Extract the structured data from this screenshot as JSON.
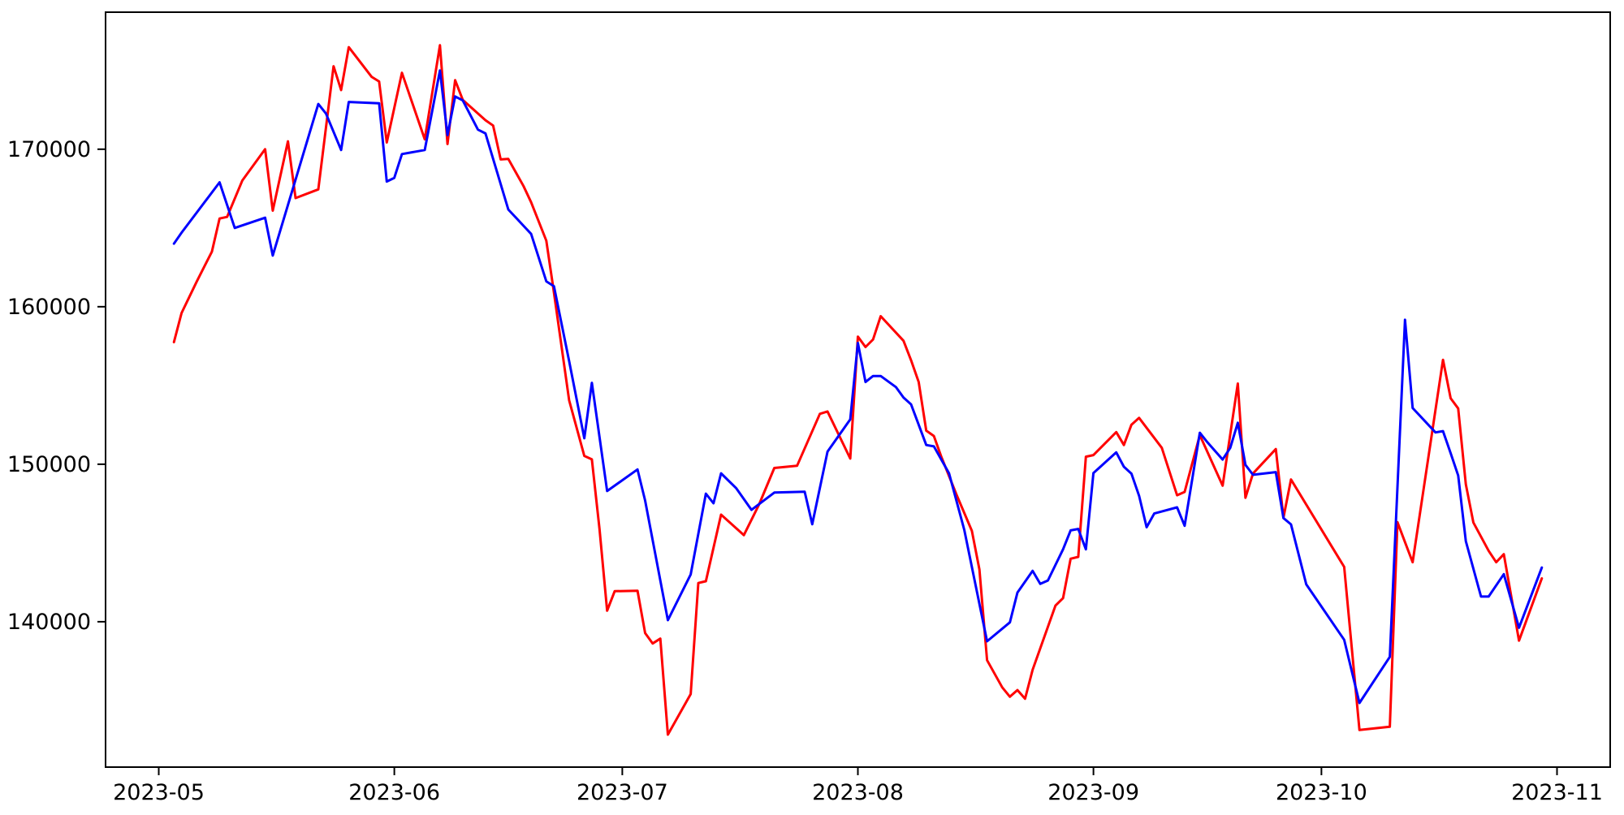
{
  "chart_data": {
    "type": "line",
    "title": "",
    "xlabel": "",
    "ylabel": "",
    "grid": false,
    "legend": null,
    "background_color": "#ffffff",
    "axis_color": "#000000",
    "x_axis": {
      "range": [
        "2023-04-24",
        "2023-11-08"
      ],
      "ticks": [
        {
          "label": "2023-05",
          "date": "2023-05-01"
        },
        {
          "label": "2023-06",
          "date": "2023-06-01"
        },
        {
          "label": "2023-07",
          "date": "2023-07-01"
        },
        {
          "label": "2023-08",
          "date": "2023-08-01"
        },
        {
          "label": "2023-09",
          "date": "2023-09-01"
        },
        {
          "label": "2023-10",
          "date": "2023-10-01"
        },
        {
          "label": "2023-11",
          "date": "2023-11-01"
        }
      ]
    },
    "y_axis": {
      "range": [
        130770,
        178700
      ],
      "ticks": [
        {
          "label": "140000",
          "value": 140000
        },
        {
          "label": "150000",
          "value": 150000
        },
        {
          "label": "160000",
          "value": 160000
        },
        {
          "label": "170000",
          "value": 170000
        }
      ]
    },
    "series": [
      {
        "name": "red-series",
        "color": "#ff0000",
        "points": [
          [
            "2023-05-03",
            157750
          ],
          [
            "2023-05-04",
            159600
          ],
          [
            "2023-05-06",
            161600
          ],
          [
            "2023-05-08",
            163500
          ],
          [
            "2023-05-09",
            165600
          ],
          [
            "2023-05-10",
            165700
          ],
          [
            "2023-05-12",
            168020
          ],
          [
            "2023-05-15",
            170000
          ],
          [
            "2023-05-16",
            166100
          ],
          [
            "2023-05-18",
            170500
          ],
          [
            "2023-05-19",
            166900
          ],
          [
            "2023-05-22",
            167450
          ],
          [
            "2023-05-24",
            175270
          ],
          [
            "2023-05-25",
            173760
          ],
          [
            "2023-05-26",
            176480
          ],
          [
            "2023-05-29",
            174600
          ],
          [
            "2023-05-30",
            174300
          ],
          [
            "2023-05-31",
            170430
          ],
          [
            "2023-06-02",
            174850
          ],
          [
            "2023-06-05",
            170630
          ],
          [
            "2023-06-07",
            176600
          ],
          [
            "2023-06-08",
            170330
          ],
          [
            "2023-06-09",
            174380
          ],
          [
            "2023-06-10",
            173130
          ],
          [
            "2023-06-13",
            171840
          ],
          [
            "2023-06-14",
            171500
          ],
          [
            "2023-06-15",
            169350
          ],
          [
            "2023-06-16",
            169380
          ],
          [
            "2023-06-18",
            167660
          ],
          [
            "2023-06-19",
            166630
          ],
          [
            "2023-06-21",
            164190
          ],
          [
            "2023-06-22",
            160900
          ],
          [
            "2023-06-24",
            154060
          ],
          [
            "2023-06-26",
            150530
          ],
          [
            "2023-06-27",
            150310
          ],
          [
            "2023-06-28",
            145890
          ],
          [
            "2023-06-29",
            140700
          ],
          [
            "2023-06-30",
            141940
          ],
          [
            "2023-07-03",
            141970
          ],
          [
            "2023-07-04",
            139280
          ],
          [
            "2023-07-05",
            138620
          ],
          [
            "2023-07-06",
            138930
          ],
          [
            "2023-07-07",
            132830
          ],
          [
            "2023-07-10",
            135410
          ],
          [
            "2023-07-11",
            142460
          ],
          [
            "2023-07-12",
            142570
          ],
          [
            "2023-07-14",
            146800
          ],
          [
            "2023-07-17",
            145500
          ],
          [
            "2023-07-19",
            147440
          ],
          [
            "2023-07-21",
            149760
          ],
          [
            "2023-07-24",
            149900
          ],
          [
            "2023-07-27",
            153200
          ],
          [
            "2023-07-28",
            153350
          ],
          [
            "2023-07-31",
            150360
          ],
          [
            "2023-08-01",
            158100
          ],
          [
            "2023-08-02",
            157440
          ],
          [
            "2023-08-03",
            157920
          ],
          [
            "2023-08-04",
            159400
          ],
          [
            "2023-08-07",
            157840
          ],
          [
            "2023-08-08",
            156600
          ],
          [
            "2023-08-09",
            155220
          ],
          [
            "2023-08-10",
            152130
          ],
          [
            "2023-08-11",
            151790
          ],
          [
            "2023-08-12",
            150450
          ],
          [
            "2023-08-14",
            148040
          ],
          [
            "2023-08-16",
            145770
          ],
          [
            "2023-08-17",
            143310
          ],
          [
            "2023-08-18",
            137560
          ],
          [
            "2023-08-20",
            135830
          ],
          [
            "2023-08-21",
            135240
          ],
          [
            "2023-08-22",
            135660
          ],
          [
            "2023-08-23",
            135110
          ],
          [
            "2023-08-24",
            136950
          ],
          [
            "2023-08-27",
            141020
          ],
          [
            "2023-08-28",
            141500
          ],
          [
            "2023-08-29",
            144000
          ],
          [
            "2023-08-30",
            144120
          ],
          [
            "2023-08-31",
            150480
          ],
          [
            "2023-09-01",
            150580
          ],
          [
            "2023-09-04",
            152040
          ],
          [
            "2023-09-05",
            151220
          ],
          [
            "2023-09-06",
            152510
          ],
          [
            "2023-09-07",
            152940
          ],
          [
            "2023-09-10",
            151040
          ],
          [
            "2023-09-12",
            148030
          ],
          [
            "2023-09-13",
            148240
          ],
          [
            "2023-09-15",
            151850
          ],
          [
            "2023-09-18",
            148640
          ],
          [
            "2023-09-20",
            155120
          ],
          [
            "2023-09-21",
            147870
          ],
          [
            "2023-09-22",
            149410
          ],
          [
            "2023-09-25",
            150960
          ],
          [
            "2023-09-26",
            146610
          ],
          [
            "2023-09-27",
            149030
          ],
          [
            "2023-10-04",
            143480
          ],
          [
            "2023-10-06",
            133130
          ],
          [
            "2023-10-10",
            133330
          ],
          [
            "2023-10-11",
            146320
          ],
          [
            "2023-10-13",
            143780
          ],
          [
            "2023-10-17",
            156630
          ],
          [
            "2023-10-18",
            154190
          ],
          [
            "2023-10-19",
            153540
          ],
          [
            "2023-10-20",
            148730
          ],
          [
            "2023-10-21",
            146300
          ],
          [
            "2023-10-23",
            144500
          ],
          [
            "2023-10-24",
            143780
          ],
          [
            "2023-10-25",
            144290
          ],
          [
            "2023-10-27",
            138800
          ],
          [
            "2023-10-30",
            142750
          ]
        ]
      },
      {
        "name": "blue-series",
        "color": "#0000ff",
        "points": [
          [
            "2023-05-03",
            164000
          ],
          [
            "2023-05-04",
            164700
          ],
          [
            "2023-05-09",
            167900
          ],
          [
            "2023-05-11",
            165000
          ],
          [
            "2023-05-15",
            165650
          ],
          [
            "2023-05-16",
            163250
          ],
          [
            "2023-05-22",
            172870
          ],
          [
            "2023-05-23",
            172270
          ],
          [
            "2023-05-25",
            169950
          ],
          [
            "2023-05-26",
            173000
          ],
          [
            "2023-05-30",
            172920
          ],
          [
            "2023-05-31",
            167950
          ],
          [
            "2023-06-01",
            168180
          ],
          [
            "2023-06-02",
            169690
          ],
          [
            "2023-06-05",
            169950
          ],
          [
            "2023-06-07",
            175000
          ],
          [
            "2023-06-08",
            170890
          ],
          [
            "2023-06-09",
            173350
          ],
          [
            "2023-06-10",
            173100
          ],
          [
            "2023-06-12",
            171240
          ],
          [
            "2023-06-13",
            171000
          ],
          [
            "2023-06-16",
            166170
          ],
          [
            "2023-06-18",
            165140
          ],
          [
            "2023-06-19",
            164620
          ],
          [
            "2023-06-21",
            161610
          ],
          [
            "2023-06-22",
            161300
          ],
          [
            "2023-06-24",
            156550
          ],
          [
            "2023-06-26",
            151650
          ],
          [
            "2023-06-27",
            155170
          ],
          [
            "2023-06-29",
            148300
          ],
          [
            "2023-07-03",
            149670
          ],
          [
            "2023-07-04",
            147690
          ],
          [
            "2023-07-07",
            140100
          ],
          [
            "2023-07-10",
            143000
          ],
          [
            "2023-07-12",
            148130
          ],
          [
            "2023-07-13",
            147520
          ],
          [
            "2023-07-14",
            149420
          ],
          [
            "2023-07-16",
            148470
          ],
          [
            "2023-07-18",
            147100
          ],
          [
            "2023-07-21",
            148200
          ],
          [
            "2023-07-25",
            148250
          ],
          [
            "2023-07-26",
            146190
          ],
          [
            "2023-07-28",
            150800
          ],
          [
            "2023-07-31",
            152850
          ],
          [
            "2023-08-01",
            157700
          ],
          [
            "2023-08-02",
            155220
          ],
          [
            "2023-08-03",
            155600
          ],
          [
            "2023-08-04",
            155600
          ],
          [
            "2023-08-06",
            154900
          ],
          [
            "2023-08-07",
            154230
          ],
          [
            "2023-08-08",
            153800
          ],
          [
            "2023-08-10",
            151220
          ],
          [
            "2023-08-11",
            151130
          ],
          [
            "2023-08-13",
            149420
          ],
          [
            "2023-08-15",
            145840
          ],
          [
            "2023-08-18",
            138760
          ],
          [
            "2023-08-21",
            139960
          ],
          [
            "2023-08-22",
            141850
          ],
          [
            "2023-08-24",
            143230
          ],
          [
            "2023-08-25",
            142400
          ],
          [
            "2023-08-26",
            142620
          ],
          [
            "2023-08-28",
            144600
          ],
          [
            "2023-08-29",
            145800
          ],
          [
            "2023-08-30",
            145890
          ],
          [
            "2023-08-31",
            144600
          ],
          [
            "2023-09-01",
            149440
          ],
          [
            "2023-09-04",
            150750
          ],
          [
            "2023-09-05",
            149840
          ],
          [
            "2023-09-06",
            149400
          ],
          [
            "2023-09-07",
            148000
          ],
          [
            "2023-09-08",
            146000
          ],
          [
            "2023-09-09",
            146870
          ],
          [
            "2023-09-10",
            147000
          ],
          [
            "2023-09-12",
            147260
          ],
          [
            "2023-09-13",
            146090
          ],
          [
            "2023-09-15",
            152000
          ],
          [
            "2023-09-16",
            151390
          ],
          [
            "2023-09-18",
            150300
          ],
          [
            "2023-09-19",
            151040
          ],
          [
            "2023-09-20",
            152630
          ],
          [
            "2023-09-21",
            149960
          ],
          [
            "2023-09-22",
            149330
          ],
          [
            "2023-09-25",
            149500
          ],
          [
            "2023-09-26",
            146580
          ],
          [
            "2023-09-27",
            146180
          ],
          [
            "2023-09-29",
            142370
          ],
          [
            "2023-10-04",
            138850
          ],
          [
            "2023-10-06",
            134840
          ],
          [
            "2023-10-10",
            137770
          ],
          [
            "2023-10-12",
            159170
          ],
          [
            "2023-10-13",
            153570
          ],
          [
            "2023-10-16",
            152020
          ],
          [
            "2023-10-17",
            152100
          ],
          [
            "2023-10-18",
            150700
          ],
          [
            "2023-10-19",
            149280
          ],
          [
            "2023-10-20",
            145120
          ],
          [
            "2023-10-22",
            141600
          ],
          [
            "2023-10-23",
            141600
          ],
          [
            "2023-10-25",
            143020
          ],
          [
            "2023-10-27",
            139620
          ],
          [
            "2023-10-30",
            143440
          ]
        ]
      }
    ]
  }
}
